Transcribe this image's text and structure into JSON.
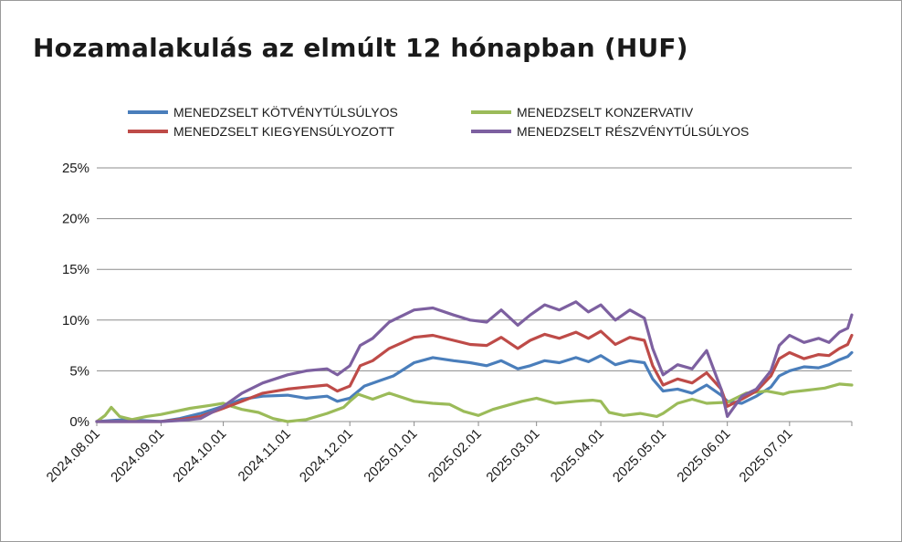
{
  "title": "Hozamalakulás az elmúlt 12 hónapban (HUF)",
  "chart_data": {
    "type": "line",
    "title": "Hozamalakulás az elmúlt 12 hónapban (HUF)",
    "xlabel": "",
    "ylabel": "",
    "x_ticks": [
      "2024.08.01",
      "2024.09.01",
      "2024.10.01",
      "2024.11.01",
      "2024.12.01",
      "2025.01.01",
      "2025.02.01",
      "2025.03.01",
      "2025.04.01",
      "2025.05.01",
      "2025.06.01",
      "2025.07.01"
    ],
    "x_range": [
      "2024.08.01",
      "2025.07.31"
    ],
    "y_ticks": [
      "0%",
      "5%",
      "10%",
      "15%",
      "20%",
      "25%"
    ],
    "ylim": [
      0,
      25
    ],
    "y_unit": "%",
    "grid": true,
    "legend_position": "top",
    "series": [
      {
        "name": "MENEDZSELT KÖTVÉNYTÚLSÚLYOS",
        "color": "#4a7ebb",
        "points": [
          [
            "2024.08.01",
            0.0
          ],
          [
            "2024.08.15",
            0.2
          ],
          [
            "2024.09.01",
            0.0
          ],
          [
            "2024.09.10",
            0.3
          ],
          [
            "2024.09.20",
            0.8
          ],
          [
            "2024.10.01",
            1.5
          ],
          [
            "2024.10.10",
            2.2
          ],
          [
            "2024.10.20",
            2.5
          ],
          [
            "2024.11.01",
            2.6
          ],
          [
            "2024.11.10",
            2.3
          ],
          [
            "2024.11.20",
            2.5
          ],
          [
            "2024.11.25",
            2.0
          ],
          [
            "2024.12.01",
            2.3
          ],
          [
            "2024.12.08",
            3.5
          ],
          [
            "2024.12.15",
            4.0
          ],
          [
            "2024.12.22",
            4.5
          ],
          [
            "2025.01.01",
            5.8
          ],
          [
            "2025.01.10",
            6.3
          ],
          [
            "2025.01.20",
            6.0
          ],
          [
            "2025.01.28",
            5.8
          ],
          [
            "2025.02.05",
            5.5
          ],
          [
            "2025.02.12",
            6.0
          ],
          [
            "2025.02.20",
            5.2
          ],
          [
            "2025.02.26",
            5.5
          ],
          [
            "2025.03.05",
            6.0
          ],
          [
            "2025.03.12",
            5.8
          ],
          [
            "2025.03.20",
            6.3
          ],
          [
            "2025.03.26",
            5.9
          ],
          [
            "2025.04.01",
            6.5
          ],
          [
            "2025.04.08",
            5.6
          ],
          [
            "2025.04.15",
            6.0
          ],
          [
            "2025.04.22",
            5.8
          ],
          [
            "2025.04.26",
            4.2
          ],
          [
            "2025.05.01",
            3.0
          ],
          [
            "2025.05.08",
            3.2
          ],
          [
            "2025.05.15",
            2.8
          ],
          [
            "2025.05.22",
            3.6
          ],
          [
            "2025.05.29",
            2.6
          ],
          [
            "2025.06.01",
            2.0
          ],
          [
            "2025.06.08",
            1.8
          ],
          [
            "2025.06.15",
            2.5
          ],
          [
            "2025.06.22",
            3.4
          ],
          [
            "2025.06.26",
            4.5
          ],
          [
            "2025.07.01",
            5.0
          ],
          [
            "2025.07.08",
            5.4
          ],
          [
            "2025.07.15",
            5.3
          ],
          [
            "2025.07.20",
            5.6
          ],
          [
            "2025.07.25",
            6.1
          ],
          [
            "2025.07.29",
            6.4
          ],
          [
            "2025.07.31",
            6.8
          ]
        ]
      },
      {
        "name": "MENEDZSELT KONZERVATIV",
        "color": "#9bbb59",
        "points": [
          [
            "2024.08.01",
            0.0
          ],
          [
            "2024.08.05",
            0.6
          ],
          [
            "2024.08.08",
            1.4
          ],
          [
            "2024.08.12",
            0.5
          ],
          [
            "2024.08.18",
            0.2
          ],
          [
            "2024.08.25",
            0.5
          ],
          [
            "2024.09.01",
            0.7
          ],
          [
            "2024.09.15",
            1.3
          ],
          [
            "2024.09.25",
            1.6
          ],
          [
            "2024.10.01",
            1.8
          ],
          [
            "2024.10.05",
            1.5
          ],
          [
            "2024.10.10",
            1.2
          ],
          [
            "2024.10.18",
            0.9
          ],
          [
            "2024.10.25",
            0.3
          ],
          [
            "2024.11.01",
            0.0
          ],
          [
            "2024.11.10",
            0.2
          ],
          [
            "2024.11.20",
            0.8
          ],
          [
            "2024.11.28",
            1.4
          ],
          [
            "2024.12.01",
            2.0
          ],
          [
            "2024.12.05",
            2.7
          ],
          [
            "2024.12.12",
            2.2
          ],
          [
            "2024.12.20",
            2.8
          ],
          [
            "2025.01.01",
            2.0
          ],
          [
            "2025.01.10",
            1.8
          ],
          [
            "2025.01.18",
            1.7
          ],
          [
            "2025.01.25",
            1.0
          ],
          [
            "2025.02.01",
            0.6
          ],
          [
            "2025.02.08",
            1.2
          ],
          [
            "2025.02.15",
            1.6
          ],
          [
            "2025.02.22",
            2.0
          ],
          [
            "2025.03.01",
            2.3
          ],
          [
            "2025.03.10",
            1.8
          ],
          [
            "2025.03.20",
            2.0
          ],
          [
            "2025.03.28",
            2.1
          ],
          [
            "2025.04.01",
            2.0
          ],
          [
            "2025.04.05",
            0.9
          ],
          [
            "2025.04.12",
            0.6
          ],
          [
            "2025.04.20",
            0.8
          ],
          [
            "2025.04.28",
            0.5
          ],
          [
            "2025.05.01",
            0.8
          ],
          [
            "2025.05.08",
            1.8
          ],
          [
            "2025.05.15",
            2.2
          ],
          [
            "2025.05.22",
            1.8
          ],
          [
            "2025.06.01",
            1.9
          ],
          [
            "2025.06.10",
            2.8
          ],
          [
            "2025.06.20",
            3.0
          ],
          [
            "2025.06.28",
            2.7
          ],
          [
            "2025.07.01",
            2.9
          ],
          [
            "2025.07.10",
            3.1
          ],
          [
            "2025.07.18",
            3.3
          ],
          [
            "2025.07.25",
            3.7
          ],
          [
            "2025.07.31",
            3.6
          ]
        ]
      },
      {
        "name": "MENEDZSELT KIEGYENSÚLYOZOTT",
        "color": "#be4b48",
        "points": [
          [
            "2024.08.01",
            0.0
          ],
          [
            "2024.09.01",
            0.0
          ],
          [
            "2024.09.10",
            0.2
          ],
          [
            "2024.09.20",
            0.5
          ],
          [
            "2024.10.01",
            1.3
          ],
          [
            "2024.10.10",
            2.0
          ],
          [
            "2024.10.20",
            2.8
          ],
          [
            "2024.11.01",
            3.2
          ],
          [
            "2024.11.10",
            3.4
          ],
          [
            "2024.11.20",
            3.6
          ],
          [
            "2024.11.25",
            3.0
          ],
          [
            "2024.12.01",
            3.5
          ],
          [
            "2024.12.06",
            5.5
          ],
          [
            "2024.12.12",
            6.0
          ],
          [
            "2024.12.20",
            7.2
          ],
          [
            "2025.01.01",
            8.3
          ],
          [
            "2025.01.10",
            8.5
          ],
          [
            "2025.01.20",
            8.0
          ],
          [
            "2025.01.28",
            7.6
          ],
          [
            "2025.02.05",
            7.5
          ],
          [
            "2025.02.12",
            8.3
          ],
          [
            "2025.02.20",
            7.2
          ],
          [
            "2025.02.26",
            8.0
          ],
          [
            "2025.03.05",
            8.6
          ],
          [
            "2025.03.12",
            8.2
          ],
          [
            "2025.03.20",
            8.8
          ],
          [
            "2025.03.26",
            8.2
          ],
          [
            "2025.04.01",
            8.9
          ],
          [
            "2025.04.08",
            7.6
          ],
          [
            "2025.04.15",
            8.3
          ],
          [
            "2025.04.22",
            8.0
          ],
          [
            "2025.04.26",
            5.5
          ],
          [
            "2025.05.01",
            3.6
          ],
          [
            "2025.05.08",
            4.2
          ],
          [
            "2025.05.15",
            3.8
          ],
          [
            "2025.05.22",
            4.8
          ],
          [
            "2025.05.29",
            3.2
          ],
          [
            "2025.06.01",
            1.5
          ],
          [
            "2025.06.08",
            2.2
          ],
          [
            "2025.06.15",
            3.0
          ],
          [
            "2025.06.22",
            4.5
          ],
          [
            "2025.06.26",
            6.2
          ],
          [
            "2025.07.01",
            6.8
          ],
          [
            "2025.07.08",
            6.2
          ],
          [
            "2025.07.15",
            6.6
          ],
          [
            "2025.07.20",
            6.5
          ],
          [
            "2025.07.25",
            7.2
          ],
          [
            "2025.07.29",
            7.6
          ],
          [
            "2025.07.31",
            8.5
          ]
        ]
      },
      {
        "name": "MENEDZSELT RÉSZVÉNYTÚLSÚLYOS",
        "color": "#7d60a0",
        "points": [
          [
            "2024.08.01",
            0.0
          ],
          [
            "2024.09.01",
            0.0
          ],
          [
            "2024.09.10",
            0.1
          ],
          [
            "2024.09.20",
            0.3
          ],
          [
            "2024.10.01",
            1.5
          ],
          [
            "2024.10.10",
            2.8
          ],
          [
            "2024.10.20",
            3.8
          ],
          [
            "2024.11.01",
            4.6
          ],
          [
            "2024.11.10",
            5.0
          ],
          [
            "2024.11.20",
            5.2
          ],
          [
            "2024.11.25",
            4.6
          ],
          [
            "2024.12.01",
            5.5
          ],
          [
            "2024.12.06",
            7.5
          ],
          [
            "2024.12.12",
            8.2
          ],
          [
            "2024.12.20",
            9.8
          ],
          [
            "2025.01.01",
            11.0
          ],
          [
            "2025.01.10",
            11.2
          ],
          [
            "2025.01.20",
            10.5
          ],
          [
            "2025.01.28",
            10.0
          ],
          [
            "2025.02.05",
            9.8
          ],
          [
            "2025.02.12",
            11.0
          ],
          [
            "2025.02.20",
            9.5
          ],
          [
            "2025.02.26",
            10.5
          ],
          [
            "2025.03.05",
            11.5
          ],
          [
            "2025.03.12",
            11.0
          ],
          [
            "2025.03.20",
            11.8
          ],
          [
            "2025.03.26",
            10.8
          ],
          [
            "2025.04.01",
            11.5
          ],
          [
            "2025.04.08",
            10.0
          ],
          [
            "2025.04.15",
            11.0
          ],
          [
            "2025.04.22",
            10.2
          ],
          [
            "2025.04.26",
            7.2
          ],
          [
            "2025.05.01",
            4.6
          ],
          [
            "2025.05.08",
            5.6
          ],
          [
            "2025.05.15",
            5.2
          ],
          [
            "2025.05.22",
            7.0
          ],
          [
            "2025.05.29",
            3.2
          ],
          [
            "2025.06.01",
            0.5
          ],
          [
            "2025.06.08",
            2.5
          ],
          [
            "2025.06.15",
            3.2
          ],
          [
            "2025.06.22",
            5.0
          ],
          [
            "2025.06.26",
            7.5
          ],
          [
            "2025.07.01",
            8.5
          ],
          [
            "2025.07.08",
            7.8
          ],
          [
            "2025.07.15",
            8.2
          ],
          [
            "2025.07.20",
            7.8
          ],
          [
            "2025.07.25",
            8.8
          ],
          [
            "2025.07.29",
            9.2
          ],
          [
            "2025.07.31",
            10.5
          ]
        ]
      }
    ]
  }
}
